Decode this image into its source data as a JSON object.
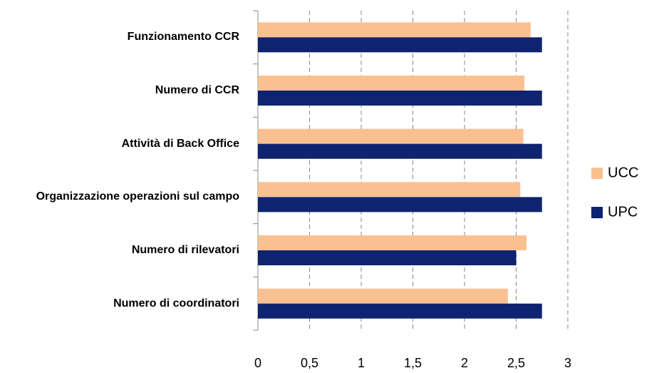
{
  "chart_data": {
    "type": "barh",
    "categories": [
      "Funzionamento CCR",
      "Numero di CCR",
      "Attività di Back Office",
      "Organizzazione operazioni sul campo",
      "Numero di rilevatori",
      "Numero di coordinatori"
    ],
    "series": [
      {
        "name": "UCC",
        "color": "#fac090",
        "values": [
          2.64,
          2.58,
          2.57,
          2.54,
          2.6,
          2.42
        ]
      },
      {
        "name": "UPC",
        "color": "#0f2470",
        "values": [
          2.75,
          2.75,
          2.75,
          2.75,
          2.5,
          2.75
        ]
      }
    ],
    "xlim": [
      0,
      3
    ],
    "xticks": [
      0,
      {
        "value": 0.5,
        "label": "0,5"
      },
      1,
      {
        "value": 1.5,
        "label": "1,5"
      },
      2,
      {
        "value": 2.5,
        "label": "2,5"
      },
      3
    ],
    "grid": true,
    "legend": "right"
  }
}
